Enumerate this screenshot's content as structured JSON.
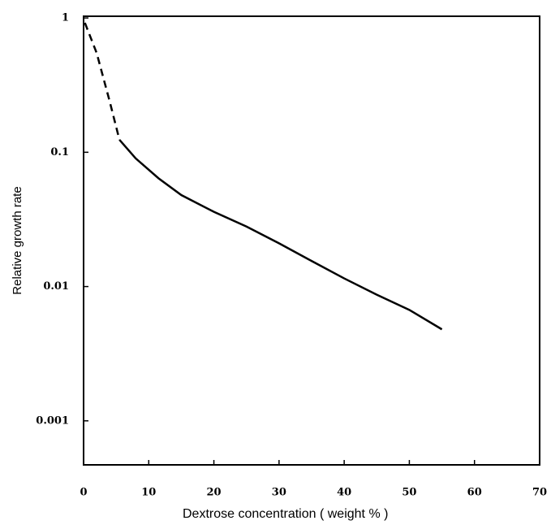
{
  "chart_data": {
    "type": "line",
    "xlabel": "Dextrose concentration ( weight % )",
    "ylabel": "Relative growth rate",
    "xlim": [
      0,
      70
    ],
    "xticks": [
      0,
      10,
      20,
      30,
      40,
      50,
      60,
      70
    ],
    "ylim": [
      0.00047,
      1.03
    ],
    "yticks": [
      1,
      0.1,
      0.01,
      0.001
    ],
    "log_y": true,
    "grid": false,
    "series": [
      {
        "color": "#000000",
        "style": "dashed",
        "x": [
          0.2,
          2,
          4,
          5.5
        ],
        "values": [
          0.92,
          0.55,
          0.24,
          0.124
        ]
      },
      {
        "color": "#000000",
        "style": "solid",
        "x": [
          5.5,
          8,
          11.5,
          15,
          20,
          25,
          30,
          35,
          40,
          45,
          50,
          55
        ],
        "values": [
          0.124,
          0.09,
          0.064,
          0.048,
          0.036,
          0.028,
          0.021,
          0.0155,
          0.0115,
          0.0087,
          0.0067,
          0.0048
        ]
      }
    ]
  }
}
